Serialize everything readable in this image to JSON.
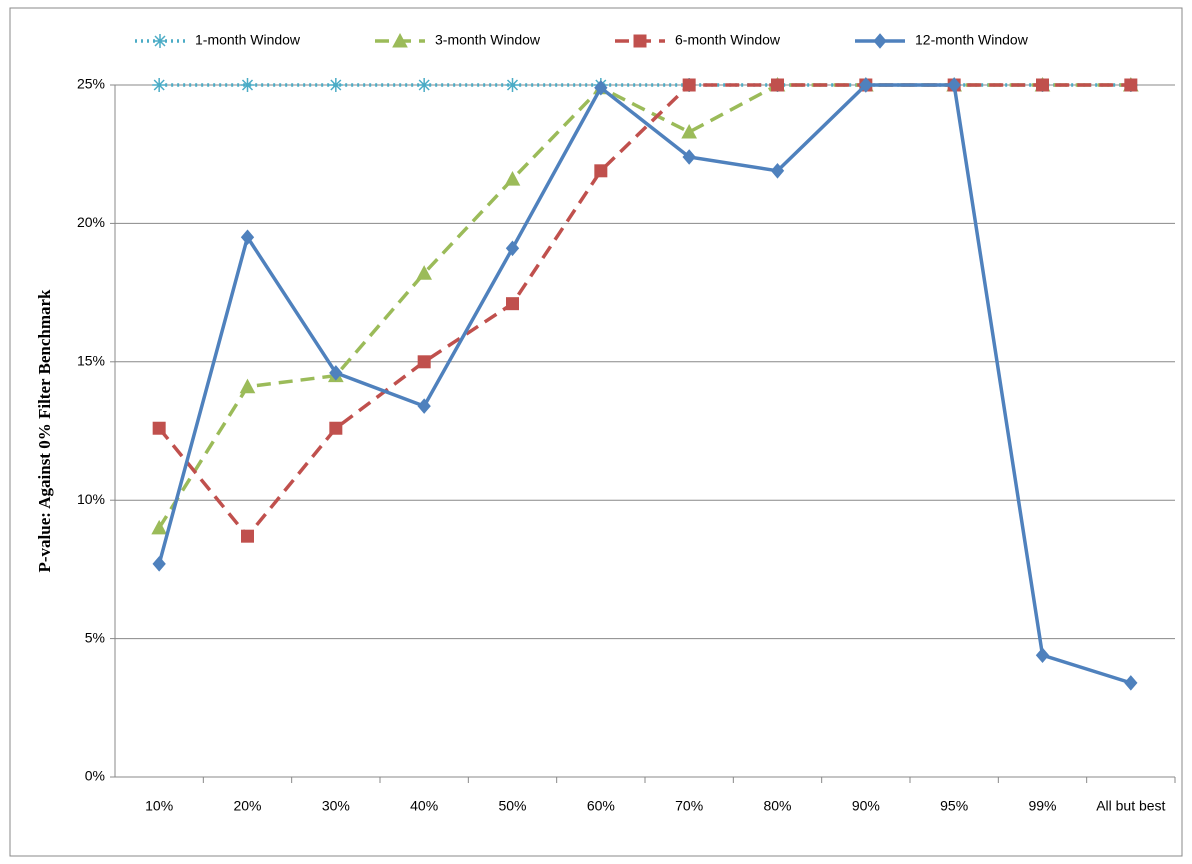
{
  "chart_data": {
    "type": "line",
    "y_label": "P-value: Against 0% Filter Benchmark",
    "categories": [
      "10%",
      "20%",
      "30%",
      "40%",
      "50%",
      "60%",
      "70%",
      "80%",
      "90%",
      "95%",
      "99%",
      "All but best"
    ],
    "series": [
      {
        "name": "1-month Window",
        "color": "#4bacc6",
        "style": "dotted",
        "marker": "star",
        "values": [
          25,
          25,
          25,
          25,
          25,
          25,
          25,
          25,
          25,
          25,
          25,
          25
        ]
      },
      {
        "name": "3-month Window",
        "color": "#9bbb59",
        "style": "dashed",
        "marker": "triangle",
        "values": [
          9.0,
          14.1,
          14.5,
          18.2,
          21.6,
          24.9,
          23.3,
          25,
          25,
          25,
          25,
          25
        ]
      },
      {
        "name": "6-month Window",
        "color": "#c0504d",
        "style": "dashed",
        "marker": "square",
        "values": [
          12.6,
          8.7,
          12.6,
          15.0,
          17.1,
          21.9,
          25,
          25,
          25,
          25,
          25,
          25
        ]
      },
      {
        "name": "12-month Window",
        "color": "#4f81bd",
        "style": "solid",
        "marker": "diamond",
        "values": [
          7.7,
          19.5,
          14.6,
          13.4,
          19.1,
          24.9,
          22.4,
          21.9,
          25,
          25,
          4.4,
          3.4
        ]
      }
    ],
    "ylim": [
      0,
      25
    ],
    "yticks": [
      {
        "value": 0,
        "label": "0%"
      },
      {
        "value": 5,
        "label": "5%"
      },
      {
        "value": 10,
        "label": "10%"
      },
      {
        "value": 15,
        "label": "15%"
      },
      {
        "value": 20,
        "label": "20%"
      },
      {
        "value": 25,
        "label": "25%"
      }
    ],
    "grid": true,
    "legend": "top"
  }
}
